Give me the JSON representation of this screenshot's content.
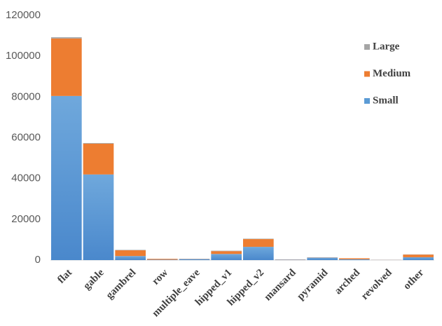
{
  "chart_data": {
    "type": "stacked_bar",
    "categories": [
      "flat",
      "gable",
      "gambrel",
      "row",
      "multiple_eave",
      "hipped_v1",
      "hipped_v2",
      "mansard",
      "pyramid",
      "arched",
      "revolved",
      "other"
    ],
    "series": [
      {
        "name": "Small",
        "color": "#5b9bd5",
        "values": [
          80500,
          42000,
          2000,
          200,
          500,
          3000,
          6500,
          200,
          1200,
          400,
          100,
          1400
        ]
      },
      {
        "name": "Medium",
        "color": "#ed7d31",
        "values": [
          28200,
          15100,
          2800,
          400,
          100,
          1400,
          3800,
          100,
          100,
          500,
          50,
          1300
        ]
      },
      {
        "name": "Large",
        "color": "#a5a5a5",
        "values": [
          600,
          300,
          200,
          50,
          50,
          200,
          200,
          0,
          50,
          0,
          0,
          100
        ]
      }
    ],
    "ylim": [
      0,
      120000
    ],
    "yticks": [
      0,
      20000,
      40000,
      60000,
      80000,
      100000,
      120000
    ],
    "grid": false,
    "legend": "right"
  }
}
